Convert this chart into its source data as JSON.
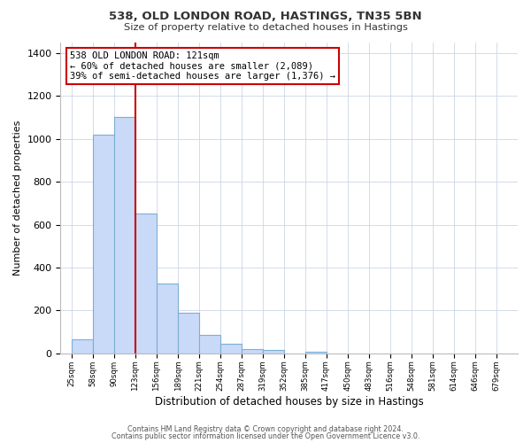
{
  "title1": "538, OLD LONDON ROAD, HASTINGS, TN35 5BN",
  "title2": "Size of property relative to detached houses in Hastings",
  "xlabel": "Distribution of detached houses by size in Hastings",
  "ylabel": "Number of detached properties",
  "bar_left_edges": [
    25,
    58,
    90,
    123,
    156,
    189,
    221,
    254,
    287,
    319,
    352,
    385,
    417,
    450,
    483,
    516,
    548,
    581,
    614,
    646
  ],
  "bar_heights": [
    65,
    1020,
    1100,
    650,
    325,
    190,
    85,
    45,
    22,
    15,
    0,
    10,
    0,
    0,
    0,
    0,
    0,
    0,
    0,
    0
  ],
  "bin_width": 33,
  "bar_facecolor": "#c9daf8",
  "bar_edgecolor": "#7bafd4",
  "vline_x": 123,
  "vline_color": "#cc0000",
  "annotation_line1": "538 OLD LONDON ROAD: 121sqm",
  "annotation_line2": "← 60% of detached houses are smaller (2,089)",
  "annotation_line3": "39% of semi-detached houses are larger (1,376) →",
  "box_edgecolor": "#cc0000",
  "ylim": [
    0,
    1450
  ],
  "yticks": [
    0,
    200,
    400,
    600,
    800,
    1000,
    1200,
    1400
  ],
  "xlim_left": 8,
  "xlim_right": 712,
  "tick_positions": [
    25,
    58,
    90,
    123,
    156,
    189,
    221,
    254,
    287,
    319,
    352,
    385,
    417,
    450,
    483,
    516,
    548,
    581,
    614,
    646,
    679
  ],
  "tick_labels": [
    "25sqm",
    "58sqm",
    "90sqm",
    "123sqm",
    "156sqm",
    "189sqm",
    "221sqm",
    "254sqm",
    "287sqm",
    "319sqm",
    "352sqm",
    "385sqm",
    "417sqm",
    "450sqm",
    "483sqm",
    "516sqm",
    "548sqm",
    "581sqm",
    "614sqm",
    "646sqm",
    "679sqm"
  ],
  "footer1": "Contains HM Land Registry data © Crown copyright and database right 2024.",
  "footer2": "Contains public sector information licensed under the Open Government Licence v3.0.",
  "background_color": "#ffffff",
  "grid_color": "#ccd6e8"
}
